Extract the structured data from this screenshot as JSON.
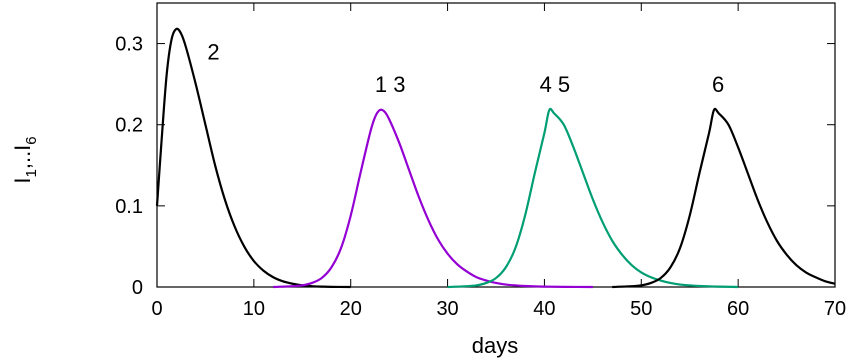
{
  "chart_data": {
    "type": "line",
    "title": "",
    "xlabel": "days",
    "ylabel_base": "I",
    "ylabel_sub1": "1",
    "ylabel_mid": ",..I",
    "ylabel_sub2": "6",
    "xlim": [
      0,
      70
    ],
    "ylim": [
      0,
      0.35
    ],
    "x_ticks": [
      0,
      10,
      20,
      30,
      40,
      50,
      60,
      70
    ],
    "y_ticks": [
      0,
      0.1,
      0.2,
      0.3
    ],
    "x_tick_labels": [
      "0",
      "10",
      "20",
      "30",
      "40",
      "50",
      "60",
      "70"
    ],
    "y_tick_labels": [
      "0",
      "0.1",
      "0.2",
      "0.3"
    ],
    "grid": false,
    "legend": "none",
    "series": [
      {
        "color": "#000000",
        "x": [
          0,
          0.5,
          1,
          1.5,
          2,
          2.5,
          3,
          4,
          5,
          6,
          7,
          8,
          9,
          10,
          11,
          12,
          13,
          14,
          15,
          16,
          17,
          18,
          20
        ],
        "y": [
          0.1,
          0.185,
          0.262,
          0.305,
          0.318,
          0.312,
          0.295,
          0.25,
          0.2,
          0.15,
          0.108,
          0.075,
          0.05,
          0.032,
          0.02,
          0.012,
          0.007,
          0.004,
          0.002,
          0.001,
          0.0005,
          0.0002,
          0
        ]
      },
      {
        "color": "#9400d3",
        "x": [
          12,
          14,
          15,
          16,
          17,
          18,
          19,
          20,
          21,
          22,
          22.5,
          23,
          23.5,
          24,
          25,
          26,
          27,
          28,
          29,
          30,
          31,
          32,
          33,
          34,
          35,
          36,
          37,
          38,
          40,
          42,
          45
        ],
        "y": [
          0,
          0.001,
          0.002,
          0.005,
          0.011,
          0.024,
          0.048,
          0.088,
          0.14,
          0.19,
          0.209,
          0.218,
          0.216,
          0.206,
          0.178,
          0.145,
          0.112,
          0.083,
          0.059,
          0.041,
          0.028,
          0.019,
          0.012,
          0.008,
          0.005,
          0.003,
          0.002,
          0.0012,
          0.0005,
          0.0002,
          0
        ]
      },
      {
        "color": "#009e73",
        "x": [
          30,
          32,
          33,
          34,
          35,
          36,
          37,
          38,
          39,
          40,
          40.5,
          41,
          42,
          43,
          44,
          45,
          46,
          47,
          48,
          49,
          50,
          51,
          52,
          53,
          54,
          55,
          56,
          58,
          60
        ],
        "y": [
          0,
          0.001,
          0.002,
          0.005,
          0.011,
          0.024,
          0.048,
          0.088,
          0.14,
          0.19,
          0.218,
          0.214,
          0.2,
          0.172,
          0.14,
          0.108,
          0.08,
          0.057,
          0.04,
          0.027,
          0.018,
          0.012,
          0.008,
          0.005,
          0.003,
          0.002,
          0.0012,
          0.0005,
          0
        ]
      },
      {
        "color": "#000000",
        "x": [
          47,
          49,
          50,
          51,
          52,
          53,
          54,
          55,
          56,
          57,
          57.5,
          58,
          59,
          60,
          61,
          62,
          63,
          64,
          65,
          66,
          67,
          68,
          69,
          70
        ],
        "y": [
          0,
          0.001,
          0.002,
          0.005,
          0.011,
          0.024,
          0.048,
          0.088,
          0.14,
          0.19,
          0.218,
          0.214,
          0.2,
          0.172,
          0.14,
          0.108,
          0.08,
          0.057,
          0.04,
          0.027,
          0.018,
          0.012,
          0.007,
          0.004
        ]
      }
    ],
    "annotations": [
      {
        "text": "2",
        "x": 5.2,
        "y": 0.29
      },
      {
        "text": "1 3",
        "x": 22.5,
        "y": 0.25
      },
      {
        "text": "4 5",
        "x": 39.5,
        "y": 0.25
      },
      {
        "text": "6",
        "x": 57.3,
        "y": 0.25
      }
    ]
  }
}
